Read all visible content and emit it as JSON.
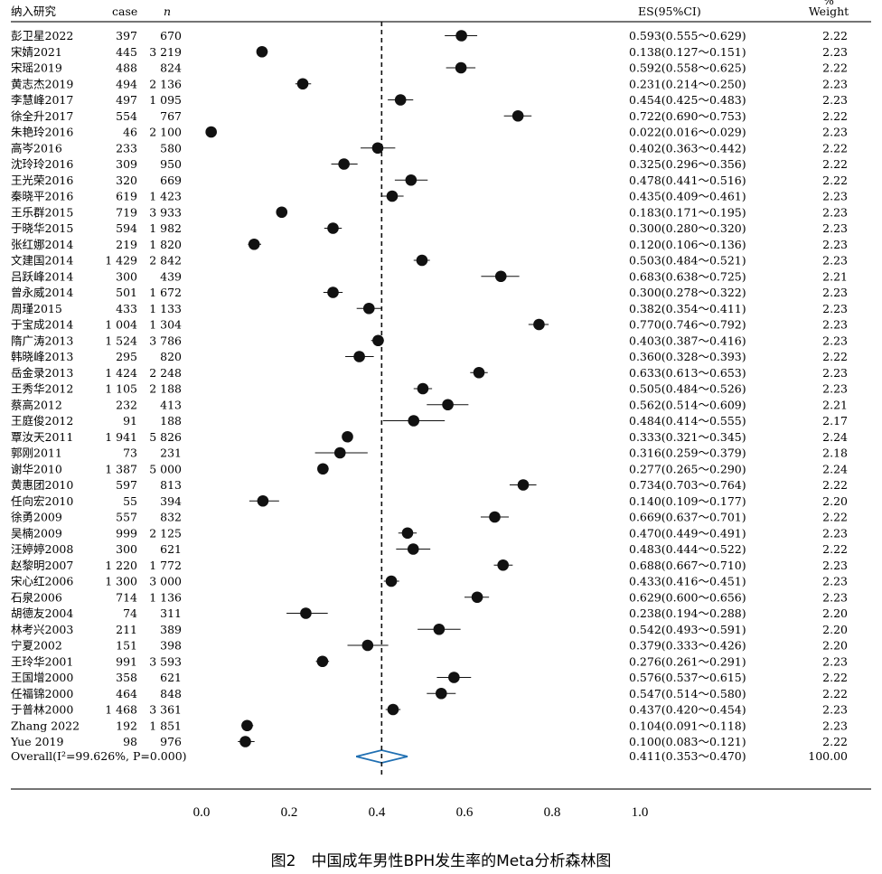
{
  "chart_data": {
    "type": "forest",
    "columns": {
      "study": "纳入研究",
      "case": "case",
      "n": "n",
      "es": "ES(95%CI)",
      "weight_top": "%",
      "weight": "Weight"
    },
    "studies": [
      {
        "study": "彭卫星2022",
        "case": "397",
        "n": "670",
        "es": 0.593,
        "lo": 0.555,
        "hi": 0.629,
        "es_text": "0.593(0.555～0.629)",
        "weight": "2.22"
      },
      {
        "study": "宋婧2021",
        "case": "445",
        "n": "3 219",
        "es": 0.138,
        "lo": 0.127,
        "hi": 0.151,
        "es_text": "0.138(0.127～0.151)",
        "weight": "2.23"
      },
      {
        "study": "宋瑶2019",
        "case": "488",
        "n": "824",
        "es": 0.592,
        "lo": 0.558,
        "hi": 0.625,
        "es_text": "0.592(0.558～0.625)",
        "weight": "2.22"
      },
      {
        "study": "黄志杰2019",
        "case": "494",
        "n": "2 136",
        "es": 0.231,
        "lo": 0.214,
        "hi": 0.25,
        "es_text": "0.231(0.214～0.250)",
        "weight": "2.23"
      },
      {
        "study": "李慧峰2017",
        "case": "497",
        "n": "1 095",
        "es": 0.454,
        "lo": 0.425,
        "hi": 0.483,
        "es_text": "0.454(0.425～0.483)",
        "weight": "2.23"
      },
      {
        "study": "徐全升2017",
        "case": "554",
        "n": "767",
        "es": 0.722,
        "lo": 0.69,
        "hi": 0.753,
        "es_text": "0.722(0.690～0.753)",
        "weight": "2.22"
      },
      {
        "study": "朱艳玲2016",
        "case": "46",
        "n": "2 100",
        "es": 0.022,
        "lo": 0.016,
        "hi": 0.029,
        "es_text": "0.022(0.016～0.029)",
        "weight": "2.23"
      },
      {
        "study": "高岑2016",
        "case": "233",
        "n": "580",
        "es": 0.402,
        "lo": 0.363,
        "hi": 0.442,
        "es_text": "0.402(0.363～0.442)",
        "weight": "2.22"
      },
      {
        "study": "沈玲玲2016",
        "case": "309",
        "n": "950",
        "es": 0.325,
        "lo": 0.296,
        "hi": 0.356,
        "es_text": "0.325(0.296～0.356)",
        "weight": "2.22"
      },
      {
        "study": "王光荣2016",
        "case": "320",
        "n": "669",
        "es": 0.478,
        "lo": 0.441,
        "hi": 0.516,
        "es_text": "0.478(0.441～0.516)",
        "weight": "2.22"
      },
      {
        "study": "秦晓平2016",
        "case": "619",
        "n": "1 423",
        "es": 0.435,
        "lo": 0.409,
        "hi": 0.461,
        "es_text": "0.435(0.409～0.461)",
        "weight": "2.23"
      },
      {
        "study": "王乐群2015",
        "case": "719",
        "n": "3 933",
        "es": 0.183,
        "lo": 0.171,
        "hi": 0.195,
        "es_text": "0.183(0.171～0.195)",
        "weight": "2.23"
      },
      {
        "study": "于晓华2015",
        "case": "594",
        "n": "1 982",
        "es": 0.3,
        "lo": 0.28,
        "hi": 0.32,
        "es_text": "0.300(0.280～0.320)",
        "weight": "2.23"
      },
      {
        "study": "张红娜2014",
        "case": "219",
        "n": "1 820",
        "es": 0.12,
        "lo": 0.106,
        "hi": 0.136,
        "es_text": "0.120(0.106～0.136)",
        "weight": "2.23"
      },
      {
        "study": "文建国2014",
        "case": "1 429",
        "n": "2 842",
        "es": 0.503,
        "lo": 0.484,
        "hi": 0.521,
        "es_text": "0.503(0.484～0.521)",
        "weight": "2.23"
      },
      {
        "study": "吕跃峰2014",
        "case": "300",
        "n": "439",
        "es": 0.683,
        "lo": 0.638,
        "hi": 0.725,
        "es_text": "0.683(0.638～0.725)",
        "weight": "2.21"
      },
      {
        "study": "曾永威2014",
        "case": "501",
        "n": "1 672",
        "es": 0.3,
        "lo": 0.278,
        "hi": 0.322,
        "es_text": "0.300(0.278～0.322)",
        "weight": "2.23"
      },
      {
        "study": "周瑾2015",
        "case": "433",
        "n": "1 133",
        "es": 0.382,
        "lo": 0.354,
        "hi": 0.411,
        "es_text": "0.382(0.354～0.411)",
        "weight": "2.23"
      },
      {
        "study": "于宝成2014",
        "case": "1 004",
        "n": "1 304",
        "es": 0.77,
        "lo": 0.746,
        "hi": 0.792,
        "es_text": "0.770(0.746～0.792)",
        "weight": "2.23"
      },
      {
        "study": "隋广涛2013",
        "case": "1 524",
        "n": "3 786",
        "es": 0.403,
        "lo": 0.387,
        "hi": 0.416,
        "es_text": "0.403(0.387～0.416)",
        "weight": "2.23"
      },
      {
        "study": "韩晓峰2013",
        "case": "295",
        "n": "820",
        "es": 0.36,
        "lo": 0.328,
        "hi": 0.393,
        "es_text": "0.360(0.328～0.393)",
        "weight": "2.22"
      },
      {
        "study": "岳金录2013",
        "case": "1 424",
        "n": "2 248",
        "es": 0.633,
        "lo": 0.613,
        "hi": 0.653,
        "es_text": "0.633(0.613～0.653)",
        "weight": "2.23"
      },
      {
        "study": "王秀华2012",
        "case": "1 105",
        "n": "2 188",
        "es": 0.505,
        "lo": 0.484,
        "hi": 0.526,
        "es_text": "0.505(0.484～0.526)",
        "weight": "2.23"
      },
      {
        "study": "蔡高2012",
        "case": "232",
        "n": "413",
        "es": 0.562,
        "lo": 0.514,
        "hi": 0.609,
        "es_text": "0.562(0.514～0.609)",
        "weight": "2.21"
      },
      {
        "study": "王庭俊2012",
        "case": "91",
        "n": "188",
        "es": 0.484,
        "lo": 0.414,
        "hi": 0.555,
        "es_text": "0.484(0.414～0.555)",
        "weight": "2.17"
      },
      {
        "study": "覃汝天2011",
        "case": "1 941",
        "n": "5 826",
        "es": 0.333,
        "lo": 0.321,
        "hi": 0.345,
        "es_text": "0.333(0.321～0.345)",
        "weight": "2.24"
      },
      {
        "study": "郭刚2011",
        "case": "73",
        "n": "231",
        "es": 0.316,
        "lo": 0.259,
        "hi": 0.379,
        "es_text": "0.316(0.259～0.379)",
        "weight": "2.18"
      },
      {
        "study": "谢华2010",
        "case": "1 387",
        "n": "5 000",
        "es": 0.277,
        "lo": 0.265,
        "hi": 0.29,
        "es_text": "0.277(0.265～0.290)",
        "weight": "2.24"
      },
      {
        "study": "黄惠团2010",
        "case": "597",
        "n": "813",
        "es": 0.734,
        "lo": 0.703,
        "hi": 0.764,
        "es_text": "0.734(0.703～0.764)",
        "weight": "2.22"
      },
      {
        "study": "任向宏2010",
        "case": "55",
        "n": "394",
        "es": 0.14,
        "lo": 0.109,
        "hi": 0.177,
        "es_text": "0.140(0.109～0.177)",
        "weight": "2.20"
      },
      {
        "study": "徐勇2009",
        "case": "557",
        "n": "832",
        "es": 0.669,
        "lo": 0.637,
        "hi": 0.701,
        "es_text": "0.669(0.637～0.701)",
        "weight": "2.22"
      },
      {
        "study": "吴楠2009",
        "case": "999",
        "n": "2 125",
        "es": 0.47,
        "lo": 0.449,
        "hi": 0.491,
        "es_text": "0.470(0.449～0.491)",
        "weight": "2.23"
      },
      {
        "study": "汪婷婷2008",
        "case": "300",
        "n": "621",
        "es": 0.483,
        "lo": 0.444,
        "hi": 0.522,
        "es_text": "0.483(0.444～0.522)",
        "weight": "2.22"
      },
      {
        "study": "赵黎明2007",
        "case": "1 220",
        "n": "1 772",
        "es": 0.688,
        "lo": 0.667,
        "hi": 0.71,
        "es_text": "0.688(0.667～0.710)",
        "weight": "2.23"
      },
      {
        "study": "宋心红2006",
        "case": "1 300",
        "n": "3 000",
        "es": 0.433,
        "lo": 0.416,
        "hi": 0.451,
        "es_text": "0.433(0.416～0.451)",
        "weight": "2.23"
      },
      {
        "study": "石泉2006",
        "case": "714",
        "n": "1 136",
        "es": 0.629,
        "lo": 0.6,
        "hi": 0.656,
        "es_text": "0.629(0.600～0.656)",
        "weight": "2.23"
      },
      {
        "study": "胡德友2004",
        "case": "74",
        "n": "311",
        "es": 0.238,
        "lo": 0.194,
        "hi": 0.288,
        "es_text": "0.238(0.194～0.288)",
        "weight": "2.20"
      },
      {
        "study": "林考兴2003",
        "case": "211",
        "n": "389",
        "es": 0.542,
        "lo": 0.493,
        "hi": 0.591,
        "es_text": "0.542(0.493～0.591)",
        "weight": "2.20"
      },
      {
        "study": "宁夏2002",
        "case": "151",
        "n": "398",
        "es": 0.379,
        "lo": 0.333,
        "hi": 0.426,
        "es_text": "0.379(0.333～0.426)",
        "weight": "2.20"
      },
      {
        "study": "王玲华2001",
        "case": "991",
        "n": "3 593",
        "es": 0.276,
        "lo": 0.261,
        "hi": 0.291,
        "es_text": "0.276(0.261～0.291)",
        "weight": "2.23"
      },
      {
        "study": "王国增2000",
        "case": "358",
        "n": "621",
        "es": 0.576,
        "lo": 0.537,
        "hi": 0.615,
        "es_text": "0.576(0.537～0.615)",
        "weight": "2.22"
      },
      {
        "study": "任福锦2000",
        "case": "464",
        "n": "848",
        "es": 0.547,
        "lo": 0.514,
        "hi": 0.58,
        "es_text": "0.547(0.514～0.580)",
        "weight": "2.22"
      },
      {
        "study": "于普林2000",
        "case": "1 468",
        "n": "3 361",
        "es": 0.437,
        "lo": 0.42,
        "hi": 0.454,
        "es_text": "0.437(0.420～0.454)",
        "weight": "2.23"
      },
      {
        "study": "Zhang 2022",
        "case": "192",
        "n": "1 851",
        "es": 0.104,
        "lo": 0.091,
        "hi": 0.118,
        "es_text": "0.104(0.091～0.118)",
        "weight": "2.23"
      },
      {
        "study": "Yue 2019",
        "case": "98",
        "n": "976",
        "es": 0.1,
        "lo": 0.083,
        "hi": 0.121,
        "es_text": "0.100(0.083～0.121)",
        "weight": "2.22"
      }
    ],
    "overall": {
      "label": "Overall(I²=99.626%, P=0.000)",
      "es": 0.411,
      "lo": 0.353,
      "hi": 0.47,
      "es_text": "0.411(0.353～0.470)",
      "weight": "100.00"
    },
    "reference_line": 0.411,
    "xlim": [
      0.0,
      1.0
    ],
    "xticks": [
      "0.0",
      "0.2",
      "0.4",
      "0.6",
      "0.8",
      "1.0"
    ],
    "xtick_values": [
      0.0,
      0.2,
      0.4,
      0.6,
      0.8,
      1.0
    ],
    "caption": "图2　中国成年男性BPH发生率的Meta分析森林图",
    "colors": {
      "diamond": "#1f6fb2",
      "marker": "#111111"
    }
  }
}
